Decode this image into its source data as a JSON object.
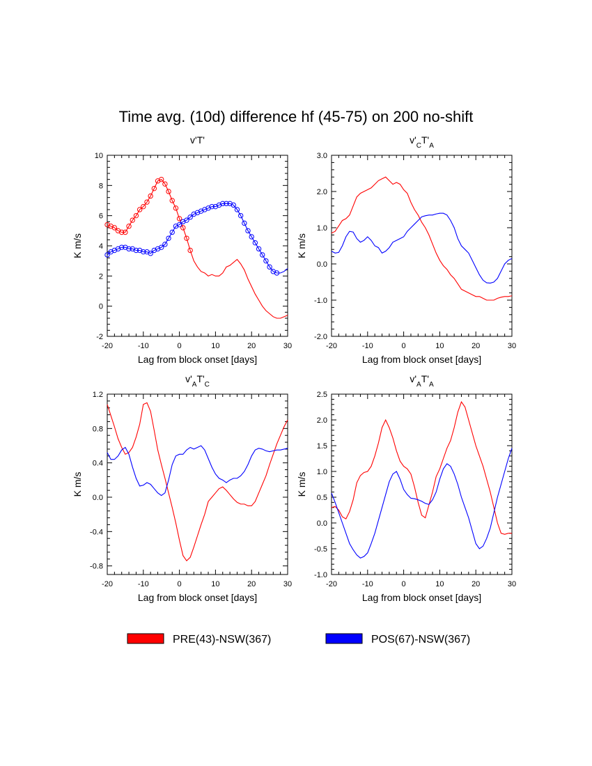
{
  "title": "Time avg. (10d)  difference hf (45-75) on 200 no-shift",
  "colors": {
    "red": "#ff0000",
    "blue": "#0000ff"
  },
  "legend": [
    {
      "label": "PRE(43)-NSW(367)",
      "color": "#ff0000"
    },
    {
      "label": "POS(67)-NSW(367)",
      "color": "#0000ff"
    }
  ],
  "chart_data": [
    {
      "type": "line",
      "title": "v'T'",
      "title_parts": [
        {
          "t": "v'T'"
        }
      ],
      "xlabel": "Lag from block onset [days]",
      "ylabel": "K m/s",
      "xlim": [
        -20,
        30
      ],
      "ylim": [
        -2,
        10
      ],
      "xticks": [
        "-20",
        "-10",
        "0",
        "10",
        "20",
        "30"
      ],
      "yticks": [
        "-2",
        "0",
        "2",
        "4",
        "6",
        "8",
        "10"
      ],
      "x": [
        -20,
        -19,
        -18,
        -17,
        -16,
        -15,
        -14,
        -13,
        -12,
        -11,
        -10,
        -9,
        -8,
        -7,
        -6,
        -5,
        -4,
        -3,
        -2,
        -1,
        0,
        1,
        2,
        3,
        4,
        5,
        6,
        7,
        8,
        9,
        10,
        11,
        12,
        13,
        14,
        15,
        16,
        17,
        18,
        19,
        20,
        21,
        22,
        23,
        24,
        25,
        26,
        27,
        28,
        29,
        30
      ],
      "series": [
        {
          "name": "PRE(43)-NSW(367)",
          "color": "#ff0000",
          "marker_until": 3,
          "values": [
            5.4,
            5.3,
            5.2,
            5.0,
            4.9,
            4.9,
            5.3,
            5.7,
            6.0,
            6.4,
            6.6,
            6.9,
            7.3,
            7.8,
            8.3,
            8.4,
            8.1,
            7.6,
            7.0,
            6.5,
            5.8,
            5.2,
            4.5,
            3.7,
            3.0,
            2.6,
            2.3,
            2.2,
            2.0,
            2.1,
            2.0,
            2.0,
            2.2,
            2.6,
            2.7,
            2.9,
            3.1,
            2.8,
            2.4,
            1.8,
            1.3,
            0.8,
            0.4,
            0.0,
            -0.3,
            -0.5,
            -0.7,
            -0.8,
            -0.8,
            -0.7,
            -0.6
          ]
        },
        {
          "name": "POS(67)-NSW(367)",
          "color": "#0000ff",
          "marker_until": 27,
          "values": [
            3.4,
            3.6,
            3.7,
            3.8,
            3.9,
            3.9,
            3.8,
            3.8,
            3.7,
            3.7,
            3.6,
            3.6,
            3.5,
            3.7,
            3.8,
            3.9,
            4.1,
            4.5,
            4.9,
            5.3,
            5.4,
            5.6,
            5.7,
            5.9,
            6.1,
            6.2,
            6.3,
            6.4,
            6.5,
            6.6,
            6.6,
            6.7,
            6.8,
            6.8,
            6.8,
            6.7,
            6.4,
            6.0,
            5.5,
            5.0,
            4.6,
            4.2,
            3.8,
            3.4,
            3.0,
            2.6,
            2.3,
            2.2,
            2.2,
            2.3,
            2.5
          ]
        }
      ]
    },
    {
      "type": "line",
      "title": "v'CT'A",
      "title_parts": [
        {
          "t": "v'"
        },
        {
          "t": "C",
          "sub": true
        },
        {
          "t": "T'"
        },
        {
          "t": "A",
          "sub": true
        }
      ],
      "xlabel": "Lag from block onset [days]",
      "ylabel": "K m/s",
      "xlim": [
        -20,
        30
      ],
      "ylim": [
        -2,
        3
      ],
      "xticks": [
        "-20",
        "-10",
        "0",
        "10",
        "20",
        "30"
      ],
      "yticks": [
        "-2.0",
        "-1.0",
        "0.0",
        "1.0",
        "2.0",
        "3.0"
      ],
      "x": [
        -20,
        -19,
        -18,
        -17,
        -16,
        -15,
        -14,
        -13,
        -12,
        -11,
        -10,
        -9,
        -8,
        -7,
        -6,
        -5,
        -4,
        -3,
        -2,
        -1,
        0,
        1,
        2,
        3,
        4,
        5,
        6,
        7,
        8,
        9,
        10,
        11,
        12,
        13,
        14,
        15,
        16,
        17,
        18,
        19,
        20,
        21,
        22,
        23,
        24,
        25,
        26,
        27,
        28,
        29,
        30
      ],
      "series": [
        {
          "name": "PRE(43)-NSW(367)",
          "color": "#ff0000",
          "values": [
            0.85,
            0.9,
            1.05,
            1.2,
            1.25,
            1.35,
            1.6,
            1.85,
            1.95,
            2.0,
            2.05,
            2.1,
            2.2,
            2.3,
            2.35,
            2.4,
            2.3,
            2.2,
            2.25,
            2.2,
            2.05,
            1.95,
            1.7,
            1.5,
            1.35,
            1.15,
            1.0,
            0.8,
            0.55,
            0.3,
            0.1,
            -0.05,
            -0.15,
            -0.3,
            -0.4,
            -0.55,
            -0.7,
            -0.75,
            -0.8,
            -0.85,
            -0.9,
            -0.9,
            -0.95,
            -1.0,
            -1.0,
            -1.0,
            -0.95,
            -0.92,
            -0.9,
            -0.9,
            -0.88
          ]
        },
        {
          "name": "POS(67)-NSW(367)",
          "color": "#0000ff",
          "values": [
            0.35,
            0.3,
            0.32,
            0.5,
            0.75,
            0.9,
            0.88,
            0.7,
            0.6,
            0.65,
            0.75,
            0.65,
            0.5,
            0.45,
            0.3,
            0.35,
            0.45,
            0.6,
            0.65,
            0.7,
            0.75,
            0.9,
            1.0,
            1.1,
            1.2,
            1.3,
            1.33,
            1.35,
            1.35,
            1.38,
            1.4,
            1.4,
            1.35,
            1.2,
            1.0,
            0.7,
            0.5,
            0.4,
            0.3,
            0.1,
            -0.1,
            -0.3,
            -0.45,
            -0.52,
            -0.53,
            -0.5,
            -0.4,
            -0.2,
            0.0,
            0.1,
            0.15
          ]
        }
      ]
    },
    {
      "type": "line",
      "title": "v'AT'C",
      "title_parts": [
        {
          "t": "v'"
        },
        {
          "t": "A",
          "sub": true
        },
        {
          "t": "T'"
        },
        {
          "t": "C",
          "sub": true
        }
      ],
      "xlabel": "Lag from block onset [days]",
      "ylabel": "K m/s",
      "xlim": [
        -20,
        30
      ],
      "ylim": [
        -0.9,
        1.2
      ],
      "xticks": [
        "-20",
        "-10",
        "0",
        "10",
        "20",
        "30"
      ],
      "yticks": [
        "-0.8",
        "-0.4",
        "0.0",
        "0.4",
        "0.8",
        "1.2"
      ],
      "x": [
        -20,
        -19,
        -18,
        -17,
        -16,
        -15,
        -14,
        -13,
        -12,
        -11,
        -10,
        -9,
        -8,
        -7,
        -6,
        -5,
        -4,
        -3,
        -2,
        -1,
        0,
        1,
        2,
        3,
        4,
        5,
        6,
        7,
        8,
        9,
        10,
        11,
        12,
        13,
        14,
        15,
        16,
        17,
        18,
        19,
        20,
        21,
        22,
        23,
        24,
        25,
        26,
        27,
        28,
        29,
        30
      ],
      "series": [
        {
          "name": "PRE(43)-NSW(367)",
          "color": "#ff0000",
          "values": [
            1.08,
            0.95,
            0.82,
            0.68,
            0.58,
            0.5,
            0.52,
            0.58,
            0.7,
            0.85,
            1.08,
            1.1,
            1.0,
            0.78,
            0.55,
            0.38,
            0.22,
            0.05,
            -0.12,
            -0.3,
            -0.5,
            -0.68,
            -0.74,
            -0.7,
            -0.58,
            -0.45,
            -0.32,
            -0.2,
            -0.05,
            0.0,
            0.05,
            0.1,
            0.12,
            0.08,
            0.03,
            -0.02,
            -0.06,
            -0.08,
            -0.08,
            -0.1,
            -0.1,
            -0.05,
            0.05,
            0.15,
            0.25,
            0.38,
            0.5,
            0.62,
            0.72,
            0.82,
            0.9
          ]
        },
        {
          "name": "POS(67)-NSW(367)",
          "color": "#0000ff",
          "values": [
            0.52,
            0.44,
            0.44,
            0.48,
            0.55,
            0.58,
            0.5,
            0.35,
            0.22,
            0.13,
            0.14,
            0.17,
            0.15,
            0.1,
            0.05,
            0.02,
            0.05,
            0.2,
            0.38,
            0.48,
            0.5,
            0.5,
            0.55,
            0.58,
            0.56,
            0.58,
            0.6,
            0.55,
            0.45,
            0.35,
            0.27,
            0.22,
            0.2,
            0.17,
            0.2,
            0.22,
            0.22,
            0.25,
            0.3,
            0.38,
            0.48,
            0.55,
            0.57,
            0.56,
            0.54,
            0.53,
            0.54,
            0.55,
            0.55,
            0.56,
            0.57
          ]
        }
      ]
    },
    {
      "type": "line",
      "title": "v'AT'A",
      "title_parts": [
        {
          "t": "v'"
        },
        {
          "t": "A",
          "sub": true
        },
        {
          "t": "T'"
        },
        {
          "t": "A",
          "sub": true
        }
      ],
      "xlabel": "Lag from block onset [days]",
      "ylabel": "K m/s",
      "xlim": [
        -20,
        30
      ],
      "ylim": [
        -1,
        2.5
      ],
      "xticks": [
        "-20",
        "-10",
        "0",
        "10",
        "20",
        "30"
      ],
      "yticks": [
        "-1.0",
        "-0.5",
        "0.0",
        "0.5",
        "1.0",
        "1.5",
        "2.0",
        "2.5"
      ],
      "x": [
        -20,
        -19,
        -18,
        -17,
        -16,
        -15,
        -14,
        -13,
        -12,
        -11,
        -10,
        -9,
        -8,
        -7,
        -6,
        -5,
        -4,
        -3,
        -2,
        -1,
        0,
        1,
        2,
        3,
        4,
        5,
        6,
        7,
        8,
        9,
        10,
        11,
        12,
        13,
        14,
        15,
        16,
        17,
        18,
        19,
        20,
        21,
        22,
        23,
        24,
        25,
        26,
        27,
        28,
        29,
        30
      ],
      "series": [
        {
          "name": "PRE(43)-NSW(367)",
          "color": "#ff0000",
          "values": [
            0.3,
            0.32,
            0.25,
            0.12,
            0.08,
            0.22,
            0.45,
            0.78,
            0.92,
            0.98,
            1.0,
            1.1,
            1.3,
            1.55,
            1.85,
            2.0,
            1.85,
            1.65,
            1.4,
            1.2,
            1.1,
            1.05,
            0.95,
            0.7,
            0.4,
            0.15,
            0.1,
            0.35,
            0.6,
            0.9,
            1.05,
            1.25,
            1.45,
            1.6,
            1.85,
            2.15,
            2.35,
            2.25,
            2.0,
            1.75,
            1.5,
            1.3,
            1.1,
            0.85,
            0.6,
            0.3,
            0.0,
            -0.2,
            -0.22,
            -0.2,
            -0.2
          ]
        },
        {
          "name": "POS(67)-NSW(367)",
          "color": "#0000ff",
          "values": [
            0.58,
            0.4,
            0.2,
            0.0,
            -0.2,
            -0.4,
            -0.52,
            -0.62,
            -0.68,
            -0.65,
            -0.58,
            -0.4,
            -0.2,
            0.05,
            0.3,
            0.55,
            0.8,
            0.95,
            1.0,
            0.85,
            0.65,
            0.55,
            0.48,
            0.47,
            0.45,
            0.42,
            0.38,
            0.36,
            0.45,
            0.6,
            0.85,
            1.05,
            1.15,
            1.1,
            0.95,
            0.75,
            0.5,
            0.3,
            0.1,
            -0.15,
            -0.4,
            -0.5,
            -0.45,
            -0.3,
            -0.1,
            0.2,
            0.5,
            0.75,
            1.0,
            1.25,
            1.45
          ]
        }
      ]
    }
  ]
}
